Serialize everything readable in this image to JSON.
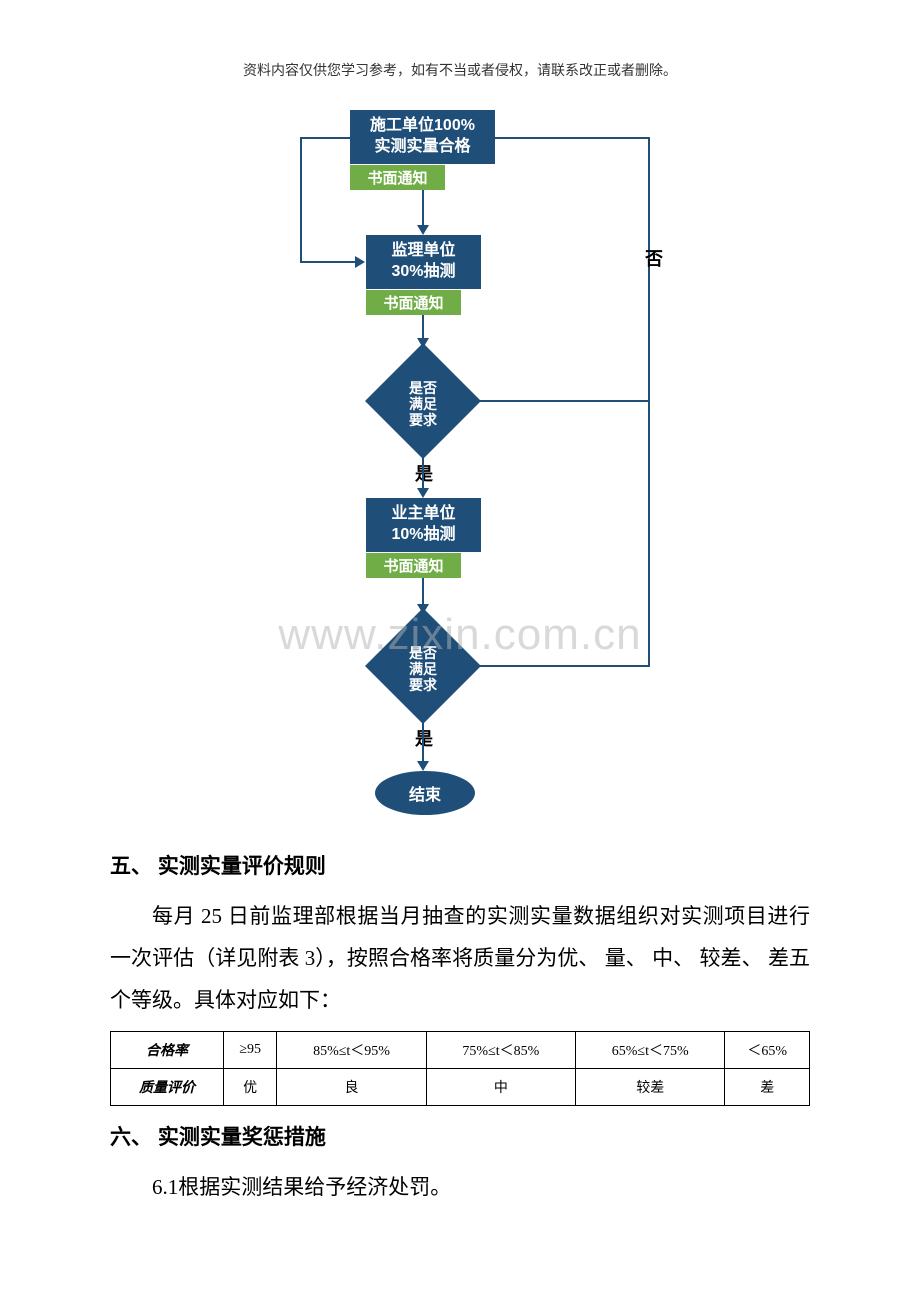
{
  "header_note": "资料内容仅供您学习参考，如有不当或者侵权，请联系改正或者删除。",
  "watermark_text": "www.zixin.com.cn",
  "flowchart": {
    "type": "flowchart",
    "colors": {
      "box_bg": "#1f4e79",
      "notice_bg": "#70ad47",
      "text": "#ffffff",
      "label": "#000000",
      "arrow": "#1f4e79"
    },
    "nodes": {
      "box1_line1": "施工单位100%",
      "box1_line2": "实测实量合格",
      "notice1": "书面通知",
      "box2_line1": "监理单位",
      "box2_line2": "30%抽测",
      "notice2": "书面通知",
      "diamond1": "是否满足要求",
      "box3_line1": "业主单位",
      "box3_line2": "10%抽测",
      "notice3": "书面通知",
      "diamond2": "是否满足要求",
      "end": "结束"
    },
    "labels": {
      "yes": "是",
      "no": "否"
    }
  },
  "section5": {
    "heading": "五、 实测实量评价规则",
    "body": "每月 25 日前监理部根据当月抽查的实测实量数据组织对实测项目进行一次评估（详见附表 3），按照合格率将质量分为优、 量、 中、 较差、 差五个等级。具体对应如下："
  },
  "table": {
    "columns": [
      "合格率",
      "≥95",
      "85%≤t＜95%",
      "75%≤t＜85%",
      "65%≤t＜75%",
      "＜65%"
    ],
    "row_label": "质量评价",
    "row_values": [
      "优",
      "良",
      "中",
      "较差",
      "差"
    ]
  },
  "section6": {
    "heading": "六、 实测实量奖惩措施",
    "body": "6.1根据实测结果给予经济处罚。"
  }
}
